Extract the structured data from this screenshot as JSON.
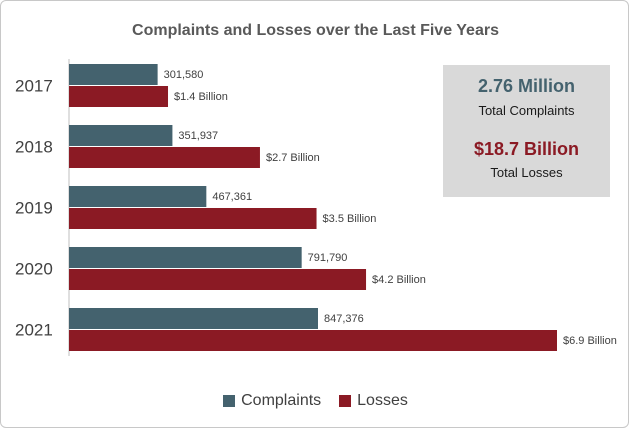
{
  "chart_data": {
    "type": "bar",
    "orientation": "horizontal",
    "title": "Complaints and Losses over the Last Five Years",
    "categories": [
      "2017",
      "2018",
      "2019",
      "2020",
      "2021"
    ],
    "series": [
      {
        "name": "Complaints",
        "color": "#44626e",
        "values": [
          301580,
          351937,
          467361,
          791790,
          847376
        ],
        "labels": [
          "301,580",
          "351,937",
          "467,361",
          "791,790",
          "847,376"
        ]
      },
      {
        "name": "Losses",
        "color": "#8b1a24",
        "values": [
          1.4,
          2.7,
          3.5,
          4.2,
          6.9
        ],
        "labels": [
          "$1.4 Billion",
          "$2.7 Billion",
          "$3.5 Billion",
          "$4.2 Billion",
          "$6.9 Billion"
        ]
      }
    ],
    "legend": "bottom-center",
    "grid": false
  },
  "summary": {
    "complaints_value": "2.76 Million",
    "complaints_label": "Total Complaints",
    "losses_value": "$18.7 Billion",
    "losses_label": "Total Losses"
  }
}
